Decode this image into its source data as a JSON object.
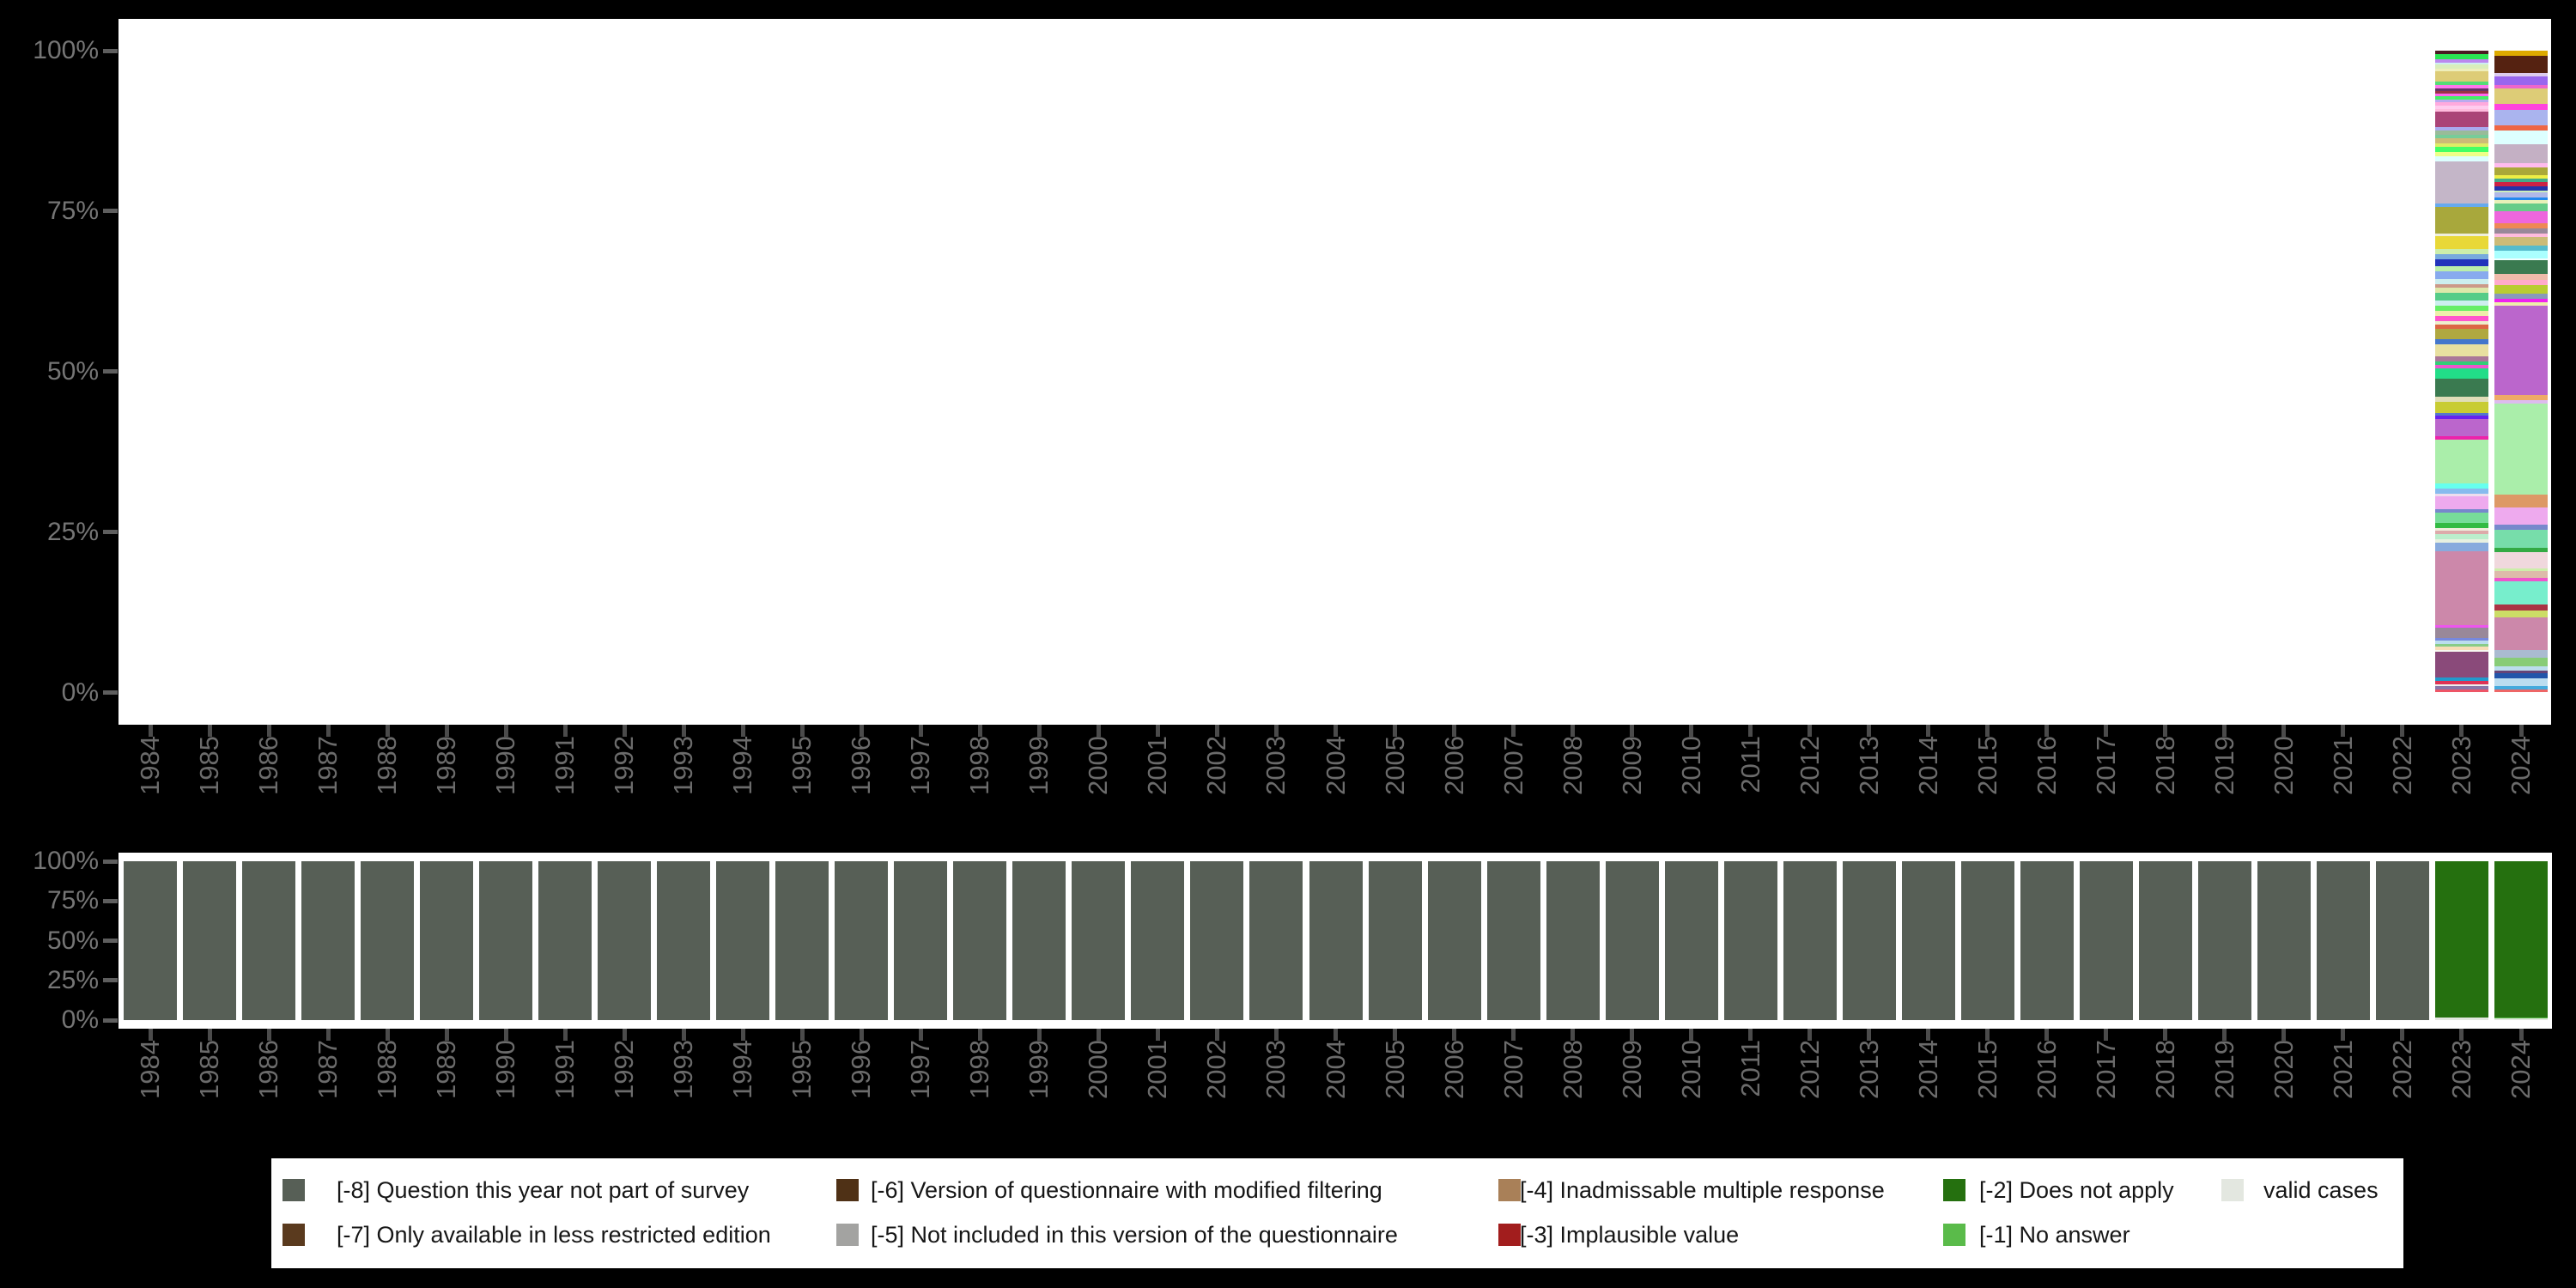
{
  "figure": {
    "background": "#000000",
    "panel_background": "#ffffff",
    "axis_text_color": "#757575",
    "x_label_color": "#6b6b6b"
  },
  "years": [
    "1984",
    "1985",
    "1986",
    "1987",
    "1988",
    "1989",
    "1990",
    "1991",
    "1992",
    "1993",
    "1994",
    "1995",
    "1996",
    "1997",
    "1998",
    "1999",
    "2000",
    "2001",
    "2002",
    "2003",
    "2004",
    "2005",
    "2006",
    "2007",
    "2008",
    "2009",
    "2010",
    "2011",
    "2012",
    "2013",
    "2014",
    "2015",
    "2016",
    "2017",
    "2018",
    "2019",
    "2020",
    "2021",
    "2022",
    "2023",
    "2024"
  ],
  "y_ticks": [
    "100%",
    "75%",
    "50%",
    "25%",
    "0%"
  ],
  "chart_data": [
    {
      "id": "valid-value-distribution-by-year",
      "type": "bar",
      "stacked": true,
      "ylim": [
        0,
        100
      ],
      "y_tick_labels": [
        "100%",
        "75%",
        "50%",
        "25%",
        "0%"
      ],
      "categories": [
        "1984",
        "1985",
        "1986",
        "1987",
        "1988",
        "1989",
        "1990",
        "1991",
        "1992",
        "1993",
        "1994",
        "1995",
        "1996",
        "1997",
        "1998",
        "1999",
        "2000",
        "2001",
        "2002",
        "2003",
        "2004",
        "2005",
        "2006",
        "2007",
        "2008",
        "2009",
        "2010",
        "2011",
        "2012",
        "2013",
        "2014",
        "2015",
        "2016",
        "2017",
        "2018",
        "2019",
        "2020",
        "2021",
        "2022",
        "2023",
        "2024"
      ],
      "note_years_with_bars": [
        "2023",
        "2024"
      ],
      "bars_top_to_bottom_color_pct": {
        "2023": [
          [
            "#4a1a22",
            0.5
          ],
          [
            "#2ae553",
            0.8
          ],
          [
            "#bb88ee",
            0.5
          ],
          [
            "#cdeef2",
            0.3
          ],
          [
            "#d9edbb",
            0.7
          ],
          [
            "#eeeebb",
            0.4
          ],
          [
            "#ddcc77",
            1.6
          ],
          [
            "#55dd77",
            0.5
          ],
          [
            "#ff77ee",
            0.5
          ],
          [
            "#663366",
            0.5
          ],
          [
            "#993344",
            0.4
          ],
          [
            "#ff66ee",
            0.4
          ],
          [
            "#44ee66",
            0.5
          ],
          [
            "#bbaaee",
            0.4
          ],
          [
            "#ffaadd",
            0.5
          ],
          [
            "#ffccee",
            0.5
          ],
          [
            "#ffbbdd",
            0.5
          ],
          [
            "#aa4477",
            2.3
          ],
          [
            "#aaaaee",
            0.5
          ],
          [
            "#99bb99",
            0.7
          ],
          [
            "#77cc99",
            0.5
          ],
          [
            "#ccbb77",
            0.9
          ],
          [
            "#ddee66",
            0.5
          ],
          [
            "#44ff66",
            0.8
          ],
          [
            "#eeff88",
            0.7
          ],
          [
            "#ddffff",
            0.7
          ],
          [
            "#c4b6c8",
            6.6
          ],
          [
            "#66aaee",
            0.5
          ],
          [
            "#a8a83c",
            4.1
          ],
          [
            "#eeeedd",
            0.4
          ],
          [
            "#e8d838",
            2.0
          ],
          [
            "#cceeaa",
            0.8
          ],
          [
            "#77aadd",
            0.8
          ],
          [
            "#2233bb",
            1.1
          ],
          [
            "#bbeeaa",
            0.7
          ],
          [
            "#88aaee",
            1.3
          ],
          [
            "#cceeee",
            0.7
          ],
          [
            "#cc9988",
            0.5
          ],
          [
            "#dde8aa",
            0.8
          ],
          [
            "#55cc88",
            1.3
          ],
          [
            "#cceeee",
            0.8
          ],
          [
            "#66ee66",
            0.8
          ],
          [
            "#eeeeaa",
            0.8
          ],
          [
            "#ff55cc",
            0.8
          ],
          [
            "#eeeecc",
            0.5
          ],
          [
            "#dd6644",
            0.7
          ],
          [
            "#b0a840",
            1.5
          ],
          [
            "#4477cc",
            0.8
          ],
          [
            "#e8e0a0",
            1.9
          ],
          [
            "#aa7799",
            0.8
          ],
          [
            "#33cc77",
            0.5
          ],
          [
            "#ee55cc",
            0.5
          ],
          [
            "#22dd88",
            1.6
          ],
          [
            "#3a7a50",
            2.9
          ],
          [
            "#e0ddb8",
            0.8
          ],
          [
            "#c8cc33",
            1.6
          ],
          [
            "#5577cc",
            0.5
          ],
          [
            "#6622ee",
            0.5
          ],
          [
            "#bb66cc",
            2.7
          ],
          [
            "#ee22aa",
            0.5
          ],
          [
            "#aaeeaa",
            6.7
          ],
          [
            "#66ffee",
            0.8
          ],
          [
            "#88bbee",
            0.8
          ],
          [
            "#eeddee",
            0.5
          ],
          [
            "#eeaaee",
            1.9
          ],
          [
            "#7788cc",
            0.5
          ],
          [
            "#77dd99",
            1.6
          ],
          [
            "#33bb44",
            0.8
          ],
          [
            "#eeeedd",
            0.5
          ],
          [
            "#ddaaaa",
            0.5
          ],
          [
            "#bbeecc",
            0.8
          ],
          [
            "#e8f0e0",
            0.5
          ],
          [
            "#88aadd",
            1.3
          ],
          [
            "#cc88aa",
            11.5
          ],
          [
            "#ee55ee",
            0.4
          ],
          [
            "#998899",
            1.5
          ],
          [
            "#7788dd",
            0.5
          ],
          [
            "#bbddee",
            0.5
          ],
          [
            "#88cc88",
            0.4
          ],
          [
            "#f8ddb8",
            0.5
          ],
          [
            "#f8f8f0",
            0.3
          ],
          [
            "#8a4a7a",
            4.0
          ],
          [
            "#2299cc",
            0.5
          ],
          [
            "#dd3355",
            0.5
          ],
          [
            "#eeeeee",
            0.3
          ],
          [
            "#8877aa",
            0.5
          ],
          [
            "#ee5566",
            0.4
          ]
        ],
        "2024": [
          [
            "#ddaa00",
            0.8
          ],
          [
            "#552211",
            2.7
          ],
          [
            "#ddccee",
            0.5
          ],
          [
            "#9966ee",
            1.3
          ],
          [
            "#ee66cc",
            0.5
          ],
          [
            "#ddcc77",
            2.5
          ],
          [
            "#ff44dd",
            0.9
          ],
          [
            "#aab4ee",
            2.4
          ],
          [
            "#ee6644",
            0.8
          ],
          [
            "#ddffff",
            2.1
          ],
          [
            "#c4b0c4",
            2.9
          ],
          [
            "#ffbbee",
            0.7
          ],
          [
            "#aaa838",
            1.2
          ],
          [
            "#eeee44",
            0.5
          ],
          [
            "#44aa88",
            0.5
          ],
          [
            "#cc2244",
            0.7
          ],
          [
            "#2233aa",
            0.7
          ],
          [
            "#cceebb",
            0.3
          ],
          [
            "#b0b8e8",
            0.8
          ],
          [
            "#2288ee",
            0.4
          ],
          [
            "#e8f0b8",
            0.5
          ],
          [
            "#66cc88",
            1.2
          ],
          [
            "#ee66dd",
            1.9
          ],
          [
            "#ee8855",
            0.7
          ],
          [
            "#998899",
            0.9
          ],
          [
            "#ffbbdd",
            0.5
          ],
          [
            "#ccbb77",
            1.3
          ],
          [
            "#55bbcc",
            0.8
          ],
          [
            "#aaffff",
            1.2
          ],
          [
            "#f0ffff",
            0.3
          ],
          [
            "#3a7a50",
            2.1
          ],
          [
            "#eebbaa",
            0.9
          ],
          [
            "#ffaacc",
            0.8
          ],
          [
            "#b8cc33",
            1.3
          ],
          [
            "#8899bb",
            0.9
          ],
          [
            "#ee22ee",
            0.5
          ],
          [
            "#eeeeaa",
            0.5
          ],
          [
            "#bb66cc",
            13.8
          ],
          [
            "#eeaa66",
            0.9
          ],
          [
            "#ddbbee",
            0.5
          ],
          [
            "#aaeeaa",
            14.1
          ],
          [
            "#dd9966",
            2.0
          ],
          [
            "#eeaaee",
            2.7
          ],
          [
            "#7788cc",
            0.8
          ],
          [
            "#77ddaa",
            2.7
          ],
          [
            "#33aa44",
            0.7
          ],
          [
            "#f0d8dd",
            2.5
          ],
          [
            "#cceeaa",
            0.4
          ],
          [
            "#ddbbaa",
            1.1
          ],
          [
            "#ee55cc",
            0.5
          ],
          [
            "#77eecc",
            3.6
          ],
          [
            "#aa3344",
            0.9
          ],
          [
            "#ccdd66",
            1.1
          ],
          [
            "#cc88aa",
            5.1
          ],
          [
            "#aabbd0",
            1.2
          ],
          [
            "#88cc77",
            1.3
          ],
          [
            "#bbddee",
            0.7
          ],
          [
            "#664477",
            0.4
          ],
          [
            "#2255aa",
            0.7
          ],
          [
            "#bbddf0",
            1.3
          ],
          [
            "#44aadd",
            0.5
          ],
          [
            "#ee6666",
            0.4
          ]
        ]
      }
    },
    {
      "id": "missing-value-distribution-by-year",
      "type": "bar",
      "stacked": true,
      "ylim": [
        0,
        100
      ],
      "y_tick_labels": [
        "100%",
        "75%",
        "50%",
        "25%",
        "0%"
      ],
      "categories": [
        "1984",
        "1985",
        "1986",
        "1987",
        "1988",
        "1989",
        "1990",
        "1991",
        "1992",
        "1993",
        "1994",
        "1995",
        "1996",
        "1997",
        "1998",
        "1999",
        "2000",
        "2001",
        "2002",
        "2003",
        "2004",
        "2005",
        "2006",
        "2007",
        "2008",
        "2009",
        "2010",
        "2011",
        "2012",
        "2013",
        "2014",
        "2015",
        "2016",
        "2017",
        "2018",
        "2019",
        "2020",
        "2021",
        "2022",
        "2023",
        "2024"
      ],
      "default_segment_code_pct": [
        [
          "-8",
          100
        ]
      ],
      "overrides_top_to_bottom_code_pct": {
        "2023": [
          [
            "-2",
            98.4
          ],
          [
            "valid",
            1.6
          ]
        ],
        "2024": [
          [
            "-2",
            98.3
          ],
          [
            "-1",
            0.8
          ],
          [
            "valid",
            0.9
          ]
        ]
      }
    }
  ],
  "legend": {
    "position": "bottom",
    "items": [
      {
        "code": "-8",
        "label": "[-8] Question this year not part of survey",
        "color": "#575f56",
        "col": 0,
        "row": 0
      },
      {
        "code": "-7",
        "label": "[-7] Only available in less restricted edition",
        "color": "#5a3a1e",
        "col": 0,
        "row": 1
      },
      {
        "code": "-6",
        "label": "[-6] Version of questionnaire with modified filtering",
        "color": "#4f3116",
        "col": 1,
        "row": 0
      },
      {
        "code": "-5",
        "label": "[-5] Not included in this version of the questionnaire",
        "color": "#a3a3a1",
        "col": 1,
        "row": 1
      },
      {
        "code": "-4",
        "label": "[-4] Inadmissable multiple response",
        "color": "#a98058",
        "col": 2,
        "row": 0
      },
      {
        "code": "-3",
        "label": "[-3] Implausible value",
        "color": "#a21d1d",
        "col": 2,
        "row": 1
      },
      {
        "code": "-2",
        "label": "[-2] Does not apply",
        "color": "#25700f",
        "col": 3,
        "row": 0
      },
      {
        "code": "-1",
        "label": "[-1] No answer",
        "color": "#5abb4a",
        "col": 3,
        "row": 1
      },
      {
        "code": "valid",
        "label": "valid cases",
        "color": "#e3e7e0",
        "col": 4,
        "row": 0
      }
    ]
  }
}
